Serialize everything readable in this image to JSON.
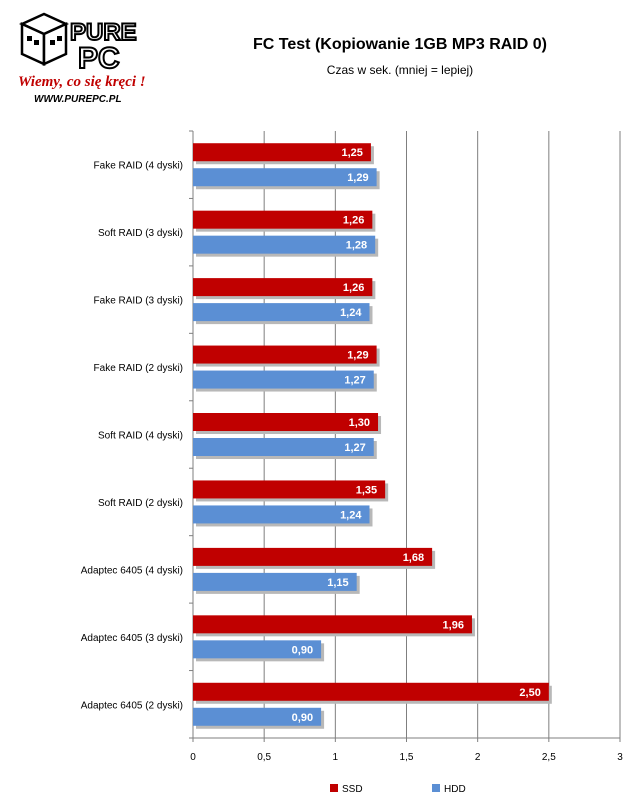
{
  "logo": {
    "brand_top": "PURE",
    "brand_bottom": "PC",
    "slogan": "Wiemy, co się kręci !",
    "url": "WWW.PUREPC.PL"
  },
  "chart_data": {
    "type": "bar",
    "orientation": "horizontal",
    "title": "FC Test (Kopiowanie 1GB MP3 RAID 0)",
    "subtitle": "Czas w sek. (mniej = lepiej)",
    "categories": [
      "Fake RAID (4 dyski)",
      "Soft RAID (3 dyski)",
      "Fake RAID (3 dyski)",
      "Fake RAID (2 dyski)",
      "Soft RAID (4 dyski)",
      "Soft RAID (2 dyski)",
      "Adaptec 6405 (4 dyski)",
      "Adaptec 6405 (3 dyski)",
      "Adaptec 6405 (2 dyski)"
    ],
    "series": [
      {
        "name": "SSD",
        "color": "#c00000",
        "values": [
          1.25,
          1.26,
          1.26,
          1.29,
          1.3,
          1.35,
          1.68,
          1.96,
          2.5
        ],
        "labels": [
          "1,25",
          "1,26",
          "1,26",
          "1,29",
          "1,30",
          "1,35",
          "1,68",
          "1,96",
          "2,50"
        ]
      },
      {
        "name": "HDD",
        "color": "#5b8fd4",
        "values": [
          1.29,
          1.28,
          1.24,
          1.27,
          1.27,
          1.24,
          1.15,
          0.9,
          0.9
        ],
        "labels": [
          "1,29",
          "1,28",
          "1,24",
          "1,27",
          "1,27",
          "1,24",
          "1,15",
          "0,90",
          "0,90"
        ]
      }
    ],
    "xlim": [
      0,
      3
    ],
    "xticks": [
      0,
      0.5,
      1,
      1.5,
      2,
      2.5,
      3
    ],
    "xtick_labels": [
      "0",
      "0,5",
      "1",
      "1,5",
      "2",
      "2,5",
      "3"
    ],
    "grid": true,
    "legend_position": "bottom"
  }
}
